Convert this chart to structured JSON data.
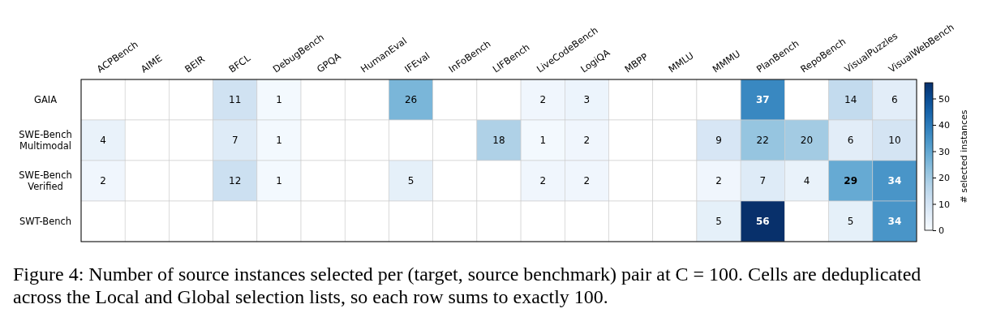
{
  "chart_data": {
    "type": "heatmap",
    "categories": [
      "ACPBench",
      "AIME",
      "BEIR",
      "BFCL",
      "DebugBench",
      "GPQA",
      "HumanEval",
      "IFEval",
      "InFoBench",
      "LIFBench",
      "LiveCodeBench",
      "LogiQA",
      "MBPP",
      "MMLU",
      "MMMU",
      "PlanBench",
      "RepoBench",
      "VisualPuzzles",
      "VisualWebBench"
    ],
    "y_categories": [
      "GAIA",
      "SWE-Bench Multimodal",
      "SWE-Bench Verified",
      "SWT-Bench"
    ],
    "cells": [
      [
        null,
        null,
        null,
        11,
        1,
        null,
        null,
        26,
        null,
        null,
        2,
        3,
        null,
        null,
        null,
        37,
        null,
        14,
        6
      ],
      [
        4,
        null,
        null,
        7,
        1,
        null,
        null,
        null,
        null,
        18,
        1,
        2,
        null,
        null,
        9,
        22,
        20,
        6,
        10
      ],
      [
        2,
        null,
        null,
        12,
        1,
        null,
        null,
        5,
        null,
        null,
        2,
        2,
        null,
        null,
        2,
        7,
        4,
        29,
        34
      ],
      [
        null,
        null,
        null,
        null,
        null,
        null,
        null,
        null,
        null,
        null,
        null,
        null,
        null,
        null,
        5,
        56,
        null,
        5,
        34
      ]
    ],
    "data_labels": true,
    "clim": [
      0,
      56
    ],
    "cticks": [
      0,
      10,
      20,
      30,
      40,
      50
    ],
    "clabel": "# selected instances",
    "annotations": [
      "Figure 4: Number of source instances selected per (target, source benchmark) pair at C = 100. Cells are deduplicated across the Local and Global selection lists, so each row sums to exactly 100."
    ]
  }
}
